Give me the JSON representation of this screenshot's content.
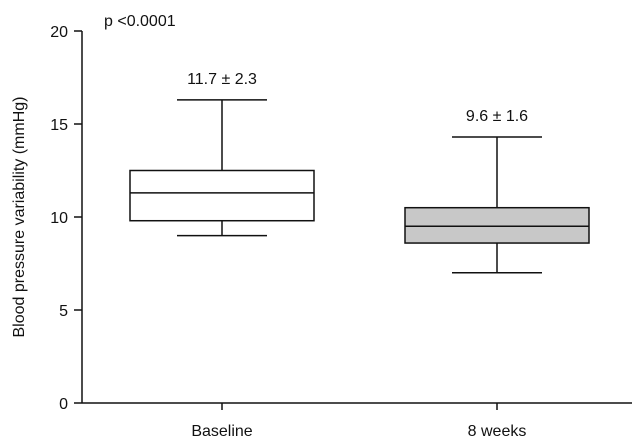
{
  "chart_data": {
    "type": "box",
    "annotation": "p <0.0001",
    "ylabel": "Blood pressure variability (mmHg)",
    "xlabel": "",
    "ylim": [
      0,
      20
    ],
    "yticks": [
      0,
      5,
      10,
      15,
      20
    ],
    "grid": false,
    "categories": [
      "Baseline",
      "8 weeks"
    ],
    "boxes": [
      {
        "category": "Baseline",
        "whisker_low": 9.0,
        "q1": 9.8,
        "median": 11.3,
        "q3": 12.5,
        "whisker_high": 16.3,
        "label": "11.7 ± 2.3",
        "fill": "#ffffff"
      },
      {
        "category": "8 weeks",
        "whisker_low": 7.0,
        "q1": 8.6,
        "median": 9.5,
        "q3": 10.5,
        "whisker_high": 14.3,
        "label": "9.6 ± 1.6",
        "fill": "#c8c8c8"
      }
    ],
    "colors": {
      "axis": "#111111",
      "stroke": "#111111"
    }
  }
}
